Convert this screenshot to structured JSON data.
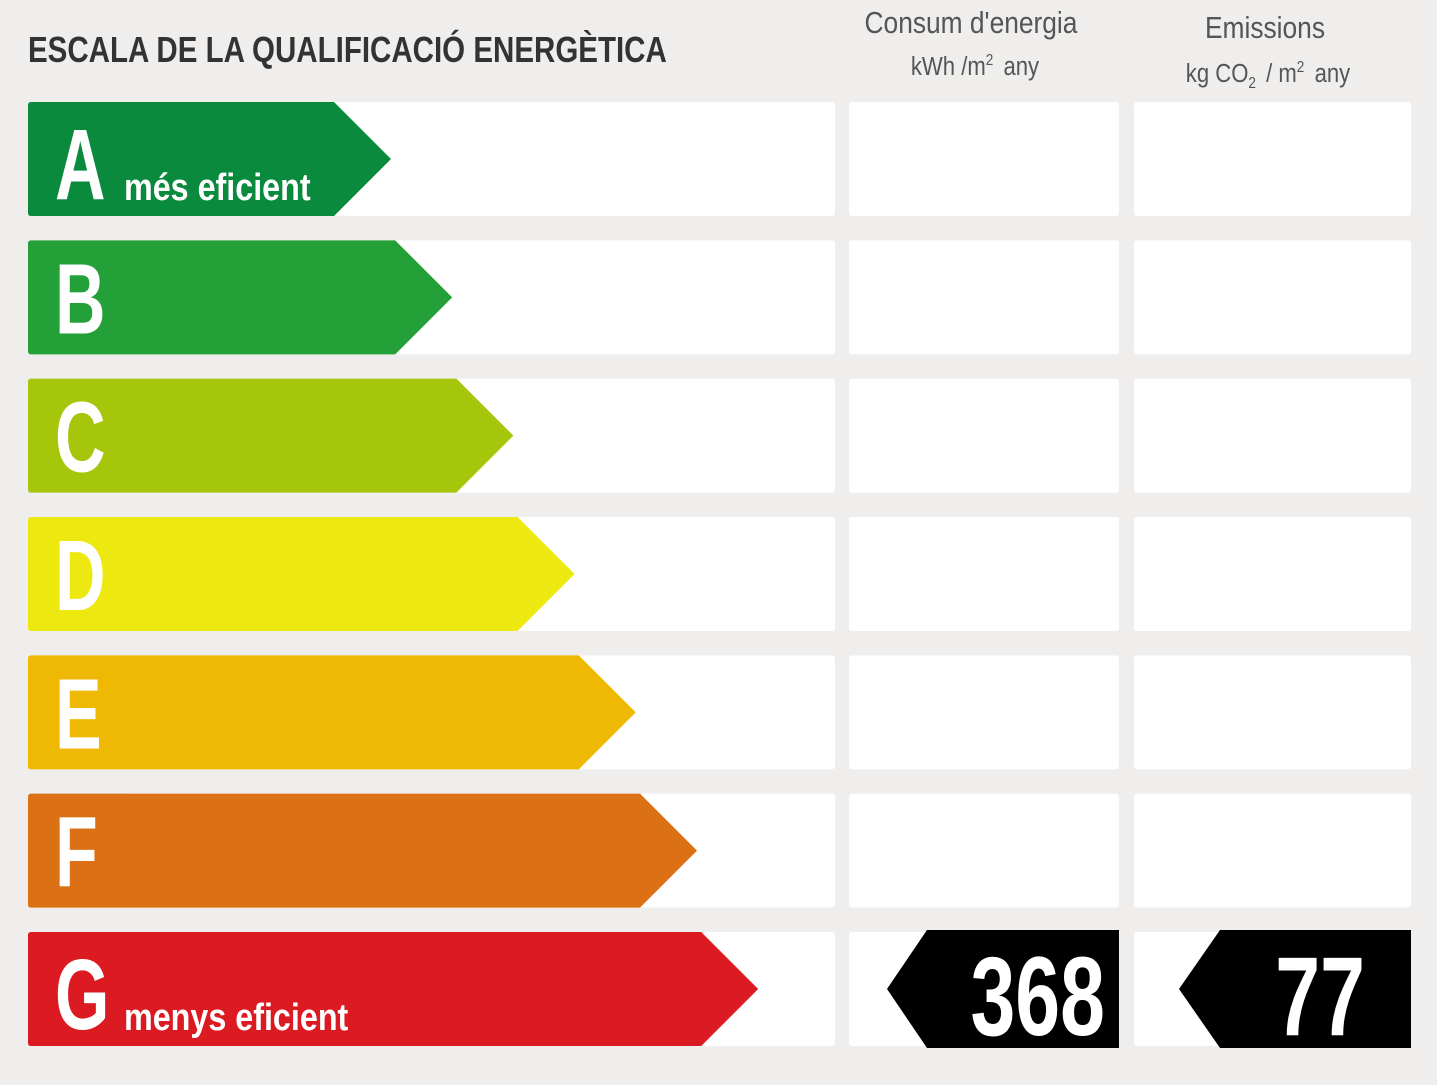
{
  "title": "ESCALA DE LA QUALIFICACIÓ ENERGÈTICA",
  "columns": [
    {
      "title": "Consum d'energia",
      "unit": [
        "kWh /m",
        "2",
        "any"
      ]
    },
    {
      "title": "Emissions",
      "unit": [
        "kg CO",
        "2",
        "/ m",
        "2",
        "any"
      ]
    }
  ],
  "rows": [
    {
      "letter": "A",
      "label": "més eficient",
      "color": "#0a8a3c"
    },
    {
      "letter": "B",
      "color": "#23a038"
    },
    {
      "letter": "C",
      "color": "#a5c60a"
    },
    {
      "letter": "D",
      "color": "#ede80f"
    },
    {
      "letter": "E",
      "color": "#efb903"
    },
    {
      "letter": "F",
      "color": "#dc7014"
    },
    {
      "letter": "G",
      "label": "menys eficient",
      "color": "#dc1a22",
      "energy": 368,
      "emissions": 77
    }
  ]
}
